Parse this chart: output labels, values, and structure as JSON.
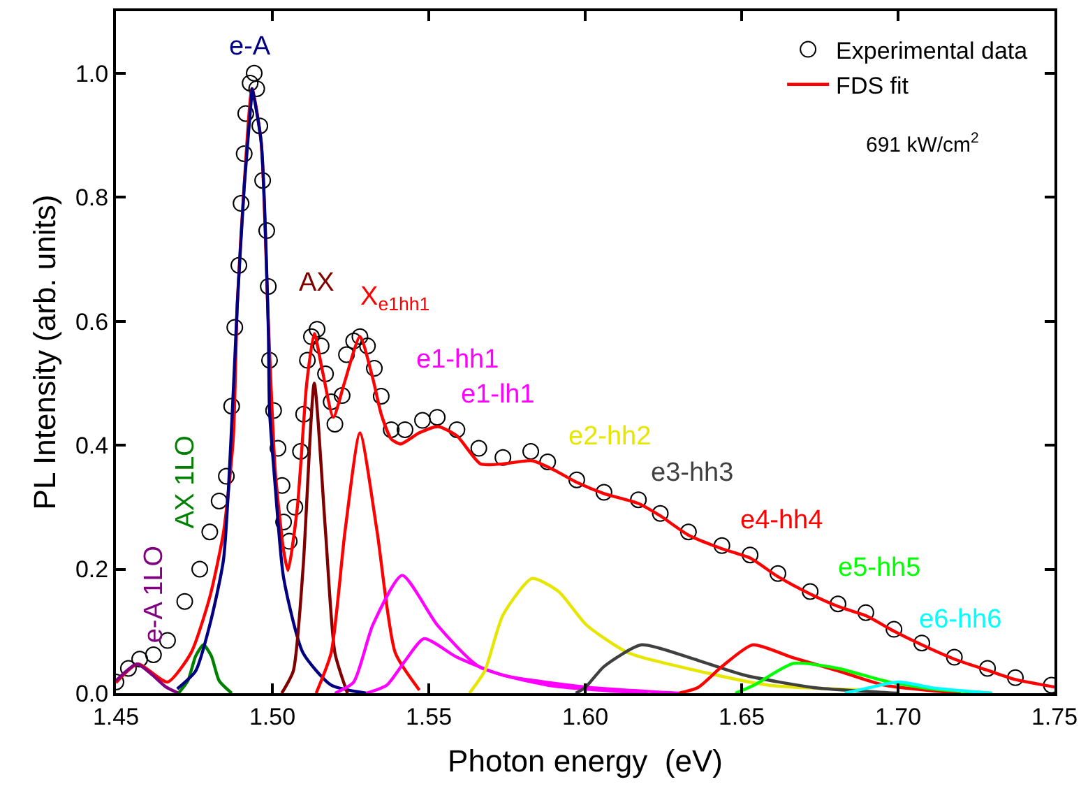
{
  "chart_data": {
    "type": "line",
    "xlabel": "Photon energy  (eV)",
    "ylabel": "PL Intensity (arb. units)",
    "xlim": [
      1.45,
      1.75
    ],
    "xticks": [
      {
        "value": 1.45,
        "label": "1.45"
      },
      {
        "value": 1.5,
        "label": "1.50"
      },
      {
        "value": 1.55,
        "label": "1.55"
      },
      {
        "value": 1.6,
        "label": "1.60"
      },
      {
        "value": 1.65,
        "label": "1.65"
      },
      {
        "value": 1.7,
        "label": "1.70"
      },
      {
        "value": 1.75,
        "label": "1.75"
      }
    ],
    "ylim": [
      0,
      1.1
    ],
    "yticks": [
      {
        "value": 0,
        "label": "0.0"
      },
      {
        "value": 0.2,
        "label": "0.2"
      },
      {
        "value": 0.4,
        "label": "0.4"
      },
      {
        "value": 0.6,
        "label": "0.6"
      },
      {
        "value": 0.8,
        "label": "0.8"
      },
      {
        "value": 1.0,
        "label": "1.0"
      }
    ],
    "legend": "top right",
    "series": [
      {
        "name": "Experimental data",
        "type": "scatter",
        "marker": "circle",
        "color": "#000000",
        "x": [
          1.45,
          1.454,
          1.4576,
          1.462,
          1.4665,
          1.472,
          1.4768,
          1.48,
          1.483,
          1.4853,
          1.487,
          1.488,
          1.4893,
          1.49,
          1.491,
          1.4915,
          1.4929,
          1.4942,
          1.495,
          1.496,
          1.4969,
          1.4982,
          1.4987,
          1.4991,
          1.5004,
          1.5018,
          1.5031,
          1.5036,
          1.5054,
          1.5072,
          1.509,
          1.51,
          1.5112,
          1.5125,
          1.5143,
          1.5156,
          1.517,
          1.5188,
          1.52,
          1.5223,
          1.5237,
          1.526,
          1.528,
          1.5304,
          1.5326,
          1.5348,
          1.538,
          1.5424,
          1.548,
          1.5527,
          1.559,
          1.566,
          1.5737,
          1.5826,
          1.588,
          1.5973,
          1.606,
          1.617,
          1.624,
          1.633,
          1.6437,
          1.6527,
          1.6616,
          1.6719,
          1.6808,
          1.6897,
          1.6987,
          1.7076,
          1.718,
          1.7286,
          1.7375,
          1.749
        ],
        "values": [
          0.018,
          0.04,
          0.055,
          0.062,
          0.085,
          0.148,
          0.2,
          0.26,
          0.31,
          0.35,
          0.463,
          0.59,
          0.69,
          0.79,
          0.87,
          0.935,
          0.984,
          1.0,
          0.975,
          0.915,
          0.827,
          0.746,
          0.656,
          0.537,
          0.456,
          0.395,
          0.335,
          0.276,
          0.245,
          0.3,
          0.39,
          0.45,
          0.537,
          0.575,
          0.587,
          0.56,
          0.515,
          0.47,
          0.434,
          0.48,
          0.546,
          0.568,
          0.575,
          0.56,
          0.524,
          0.479,
          0.425,
          0.425,
          0.44,
          0.445,
          0.425,
          0.395,
          0.38,
          0.39,
          0.373,
          0.344,
          0.324,
          0.312,
          0.29,
          0.26,
          0.238,
          0.223,
          0.193,
          0.164,
          0.144,
          0.13,
          0.103,
          0.081,
          0.058,
          0.04,
          0.025,
          0.013
        ]
      },
      {
        "name": "FDS fit",
        "color": "#ff0000",
        "x": [
          1.45,
          1.457,
          1.4665,
          1.474,
          1.48,
          1.4844,
          1.4875,
          1.4888,
          1.491,
          1.4935,
          1.4964,
          1.4987,
          1.5009,
          1.5036,
          1.505,
          1.508,
          1.511,
          1.5134,
          1.516,
          1.5195,
          1.523,
          1.528,
          1.532,
          1.5348,
          1.538,
          1.541,
          1.547,
          1.553,
          1.559,
          1.5665,
          1.574,
          1.583,
          1.59,
          1.5973,
          1.606,
          1.617,
          1.624,
          1.633,
          1.6437,
          1.6527,
          1.6616,
          1.6719,
          1.6808,
          1.6897,
          1.6987,
          1.7076,
          1.718,
          1.7286,
          1.7375,
          1.75
        ],
        "values": [
          0.017,
          0.047,
          0.018,
          0.065,
          0.155,
          0.26,
          0.41,
          0.63,
          0.82,
          0.975,
          0.89,
          0.6,
          0.36,
          0.23,
          0.198,
          0.3,
          0.5,
          0.58,
          0.52,
          0.445,
          0.5,
          0.575,
          0.51,
          0.45,
          0.41,
          0.402,
          0.42,
          0.43,
          0.415,
          0.37,
          0.37,
          0.375,
          0.36,
          0.34,
          0.322,
          0.306,
          0.286,
          0.255,
          0.233,
          0.218,
          0.188,
          0.16,
          0.14,
          0.125,
          0.1,
          0.078,
          0.055,
          0.037,
          0.022,
          0.01
        ]
      },
      {
        "name": "e-A 1LO",
        "color": "#800080",
        "x": [
          1.45,
          1.4567,
          1.4615,
          1.466,
          1.47
        ],
        "values": [
          0.02,
          0.047,
          0.03,
          0.01,
          0
        ]
      },
      {
        "name": "AX 1LO",
        "color": "#008000",
        "x": [
          1.47,
          1.473,
          1.4755,
          1.478,
          1.4805,
          1.483,
          1.487
        ],
        "values": [
          0,
          0.02,
          0.06,
          0.078,
          0.06,
          0.02,
          0
        ]
      },
      {
        "name": "e-A",
        "color": "#000080",
        "x": [
          1.4696,
          1.4755,
          1.48,
          1.4844,
          1.4875,
          1.4888,
          1.491,
          1.4933,
          1.4935,
          1.4964,
          1.4987,
          1.4991,
          1.5009,
          1.5036,
          1.5098,
          1.5188,
          1.53
        ],
        "values": [
          0.007,
          0.036,
          0.11,
          0.216,
          0.485,
          0.627,
          0.816,
          0.96,
          0.975,
          0.89,
          0.59,
          0.456,
          0.335,
          0.186,
          0.065,
          0.013,
          0
        ]
      },
      {
        "name": "AX",
        "color": "#800000",
        "x": [
          1.503,
          1.5067,
          1.5098,
          1.5134,
          1.517,
          1.52,
          1.524
        ],
        "values": [
          0,
          0.036,
          0.2,
          0.5,
          0.26,
          0.065,
          0
        ]
      },
      {
        "name": "X$_{e1hh1}$",
        "color": "#ff0000",
        "x": [
          1.514,
          1.5188,
          1.5232,
          1.528,
          1.5335,
          1.5393,
          1.547
        ],
        "values": [
          0,
          0.065,
          0.26,
          0.42,
          0.26,
          0.065,
          0.005
        ]
      },
      {
        "name": "e1-hh1",
        "color": "#ff00ff",
        "x": [
          1.52,
          1.526,
          1.5321,
          1.5415,
          1.5527,
          1.566,
          1.588,
          1.62
        ],
        "values": [
          0,
          0.018,
          0.11,
          0.19,
          0.11,
          0.043,
          0.013,
          0
        ]
      },
      {
        "name": "e1-lh1",
        "color": "#ff00ff",
        "x": [
          1.53,
          1.5366,
          1.5424,
          1.5485,
          1.559,
          1.5737,
          1.6,
          1.63
        ],
        "values": [
          0,
          0.013,
          0.052,
          0.088,
          0.058,
          0.029,
          0.01,
          0
        ]
      },
      {
        "name": "e2-hh2",
        "color": "#e6e600",
        "x": [
          1.563,
          1.5679,
          1.5737,
          1.583,
          1.5915,
          1.6004,
          1.6138,
          1.636,
          1.6585,
          1.69
        ],
        "values": [
          0,
          0.036,
          0.126,
          0.185,
          0.164,
          0.11,
          0.065,
          0.036,
          0.013,
          0.005
        ]
      },
      {
        "name": "e3-hh3",
        "color": "#404040",
        "x": [
          1.597,
          1.6,
          1.606,
          1.618,
          1.633,
          1.651,
          1.673,
          1.7
        ],
        "values": [
          0,
          0.009,
          0.043,
          0.078,
          0.058,
          0.029,
          0.009,
          0
        ]
      },
      {
        "name": "e4-hh4",
        "color": "#ff0000",
        "x": [
          1.63,
          1.636,
          1.6437,
          1.6535,
          1.666,
          1.6808,
          1.6955,
          1.72
        ],
        "values": [
          0,
          0.009,
          0.043,
          0.078,
          0.058,
          0.036,
          0.013,
          0
        ]
      },
      {
        "name": "e5-hh5",
        "color": "#00ff00",
        "x": [
          1.648,
          1.654,
          1.6665,
          1.6808,
          1.6955,
          1.7107,
          1.73
        ],
        "values": [
          0,
          0.013,
          0.048,
          0.04,
          0.02,
          0.007,
          0
        ]
      },
      {
        "name": "e6-hh6",
        "color": "#00ffff",
        "x": [
          1.683,
          1.69,
          1.7,
          1.712,
          1.73
        ],
        "values": [
          0,
          0.008,
          0.018,
          0.008,
          0
        ]
      }
    ],
    "annotations": [
      "691 kW/cm$^{2}$"
    ]
  }
}
